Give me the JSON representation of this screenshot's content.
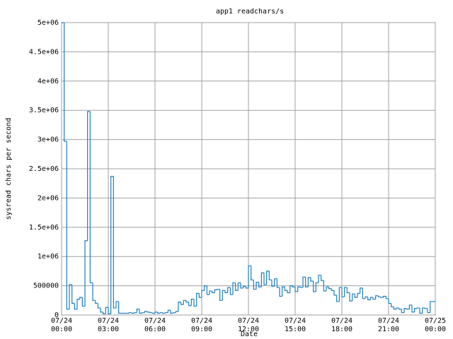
{
  "chart_data": {
    "type": "step",
    "title": "app1 readchars/s",
    "xlabel": "Date",
    "ylabel": "sysread chars per second",
    "color": "#1a7fc1",
    "grid": true,
    "xlim": [
      0,
      1440
    ],
    "xticks": [
      {
        "value": 0,
        "label": "07/24\n00:00"
      },
      {
        "value": 180,
        "label": "07/24\n03:00"
      },
      {
        "value": 360,
        "label": "07/24\n06:00"
      },
      {
        "value": 540,
        "label": "07/24\n09:00"
      },
      {
        "value": 720,
        "label": "07/24\n12:00"
      },
      {
        "value": 900,
        "label": "07/24\n15:00"
      },
      {
        "value": 1080,
        "label": "07/24\n18:00"
      },
      {
        "value": 1260,
        "label": "07/24\n21:00"
      },
      {
        "value": 1440,
        "label": "07/25\n00:00"
      }
    ],
    "ylim": [
      0,
      5000000
    ],
    "yticks": [
      0,
      500000,
      {
        "value": 1000000,
        "label": "1e+06"
      },
      {
        "value": 1500000,
        "label": "1.5e+06"
      },
      {
        "value": 2000000,
        "label": "2e+06"
      },
      {
        "value": 2500000,
        "label": "2.5e+06"
      },
      {
        "value": 3000000,
        "label": "3e+06"
      },
      {
        "value": 3500000,
        "label": "3.5e+06"
      },
      {
        "value": 4000000,
        "label": "4e+06"
      },
      {
        "value": 4500000,
        "label": "4.5e+06"
      },
      {
        "value": 5000000,
        "label": "5e+06"
      }
    ],
    "x": [
      0,
      10,
      20,
      30,
      40,
      50,
      60,
      70,
      80,
      90,
      100,
      110,
      120,
      130,
      140,
      150,
      160,
      170,
      180,
      190,
      200,
      210,
      220,
      230,
      240,
      250,
      260,
      270,
      280,
      290,
      300,
      310,
      320,
      330,
      340,
      350,
      360,
      370,
      380,
      390,
      400,
      410,
      420,
      430,
      440,
      450,
      460,
      470,
      480,
      490,
      500,
      510,
      520,
      530,
      540,
      550,
      560,
      570,
      580,
      590,
      600,
      610,
      620,
      630,
      640,
      650,
      660,
      670,
      680,
      690,
      700,
      710,
      720,
      730,
      740,
      750,
      760,
      770,
      780,
      790,
      800,
      810,
      820,
      830,
      840,
      850,
      860,
      870,
      880,
      890,
      900,
      910,
      920,
      930,
      940,
      950,
      960,
      970,
      980,
      990,
      1000,
      1010,
      1020,
      1030,
      1040,
      1050,
      1060,
      1070,
      1080,
      1090,
      1100,
      1110,
      1120,
      1130,
      1140,
      1150,
      1160,
      1170,
      1180,
      1190,
      1200,
      1210,
      1220,
      1230,
      1240,
      1250,
      1260,
      1270,
      1280,
      1290,
      1300,
      1310,
      1320,
      1330,
      1340,
      1350,
      1360,
      1370,
      1380,
      1390,
      1400,
      1410,
      1420,
      1430
    ],
    "values": [
      5000000,
      2970000,
      100000,
      520000,
      200000,
      100000,
      270000,
      300000,
      150000,
      1270000,
      3480000,
      550000,
      250000,
      200000,
      120000,
      50000,
      20000,
      130000,
      20000,
      2370000,
      120000,
      230000,
      30000,
      30000,
      30000,
      30000,
      40000,
      30000,
      40000,
      100000,
      30000,
      40000,
      60000,
      50000,
      40000,
      30000,
      50000,
      30000,
      40000,
      30000,
      40000,
      80000,
      30000,
      40000,
      60000,
      220000,
      180000,
      250000,
      220000,
      160000,
      270000,
      150000,
      370000,
      300000,
      420000,
      500000,
      350000,
      410000,
      380000,
      430000,
      440000,
      250000,
      420000,
      380000,
      470000,
      350000,
      550000,
      420000,
      550000,
      460000,
      490000,
      460000,
      840000,
      600000,
      440000,
      560000,
      480000,
      720000,
      520000,
      750000,
      600000,
      490000,
      620000,
      470000,
      320000,
      480000,
      420000,
      380000,
      500000,
      480000,
      400000,
      480000,
      470000,
      650000,
      480000,
      640000,
      580000,
      400000,
      550000,
      680000,
      590000,
      410000,
      480000,
      450000,
      420000,
      340000,
      230000,
      470000,
      310000,
      470000,
      380000,
      240000,
      360000,
      300000,
      370000,
      460000,
      280000,
      310000,
      260000,
      300000,
      270000,
      330000,
      310000,
      300000,
      320000,
      280000,
      200000,
      140000,
      100000,
      120000,
      100000,
      40000,
      110000,
      100000,
      170000,
      50000,
      110000,
      120000,
      30000,
      120000,
      110000,
      40000,
      230000,
      230000
    ]
  }
}
